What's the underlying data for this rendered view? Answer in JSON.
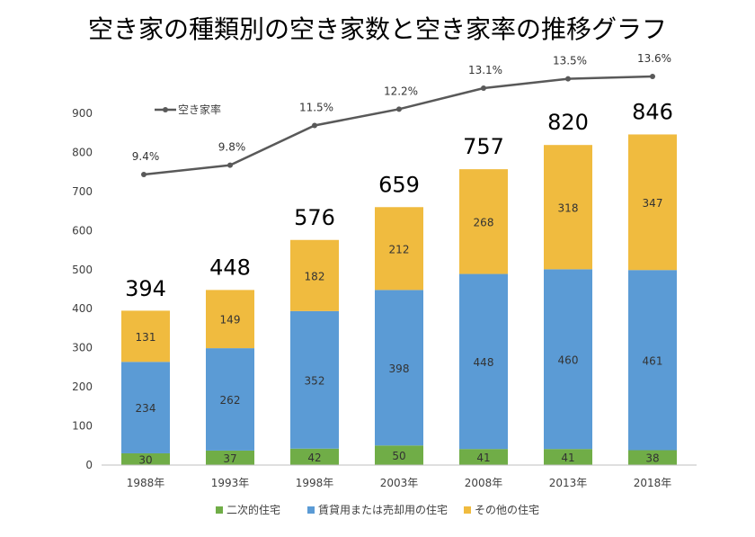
{
  "chart_data": {
    "type": "bar",
    "stacked": true,
    "title": "空き家の種類別の空き家数と空き家率の推移グラフ",
    "categories": [
      "1988年",
      "1993年",
      "1998年",
      "2003年",
      "2008年",
      "2013年",
      "2018年"
    ],
    "ylim": [
      0,
      900
    ],
    "yticks": [
      0,
      100,
      200,
      300,
      400,
      500,
      600,
      700,
      800,
      900
    ],
    "legend_position": "bottom",
    "series": [
      {
        "name": "二次的住宅",
        "color": "#70AD47",
        "values": [
          30,
          37,
          42,
          50,
          41,
          41,
          38
        ]
      },
      {
        "name": "賃貸用または売却用の住宅",
        "color": "#5B9BD5",
        "values": [
          234,
          262,
          352,
          398,
          448,
          460,
          461
        ]
      },
      {
        "name": "その他の住宅",
        "color": "#F0BB3F",
        "values": [
          131,
          149,
          182,
          212,
          268,
          318,
          347
        ]
      }
    ],
    "totals": [
      394,
      448,
      576,
      659,
      757,
      820,
      846
    ],
    "line_series": {
      "name": "空き家率",
      "color": "#595959",
      "values": [
        9.4,
        9.8,
        11.5,
        12.2,
        13.1,
        13.5,
        13.6
      ],
      "labels": [
        "9.4%",
        "9.8%",
        "11.5%",
        "12.2%",
        "13.1%",
        "13.5%",
        "13.6%"
      ]
    }
  }
}
